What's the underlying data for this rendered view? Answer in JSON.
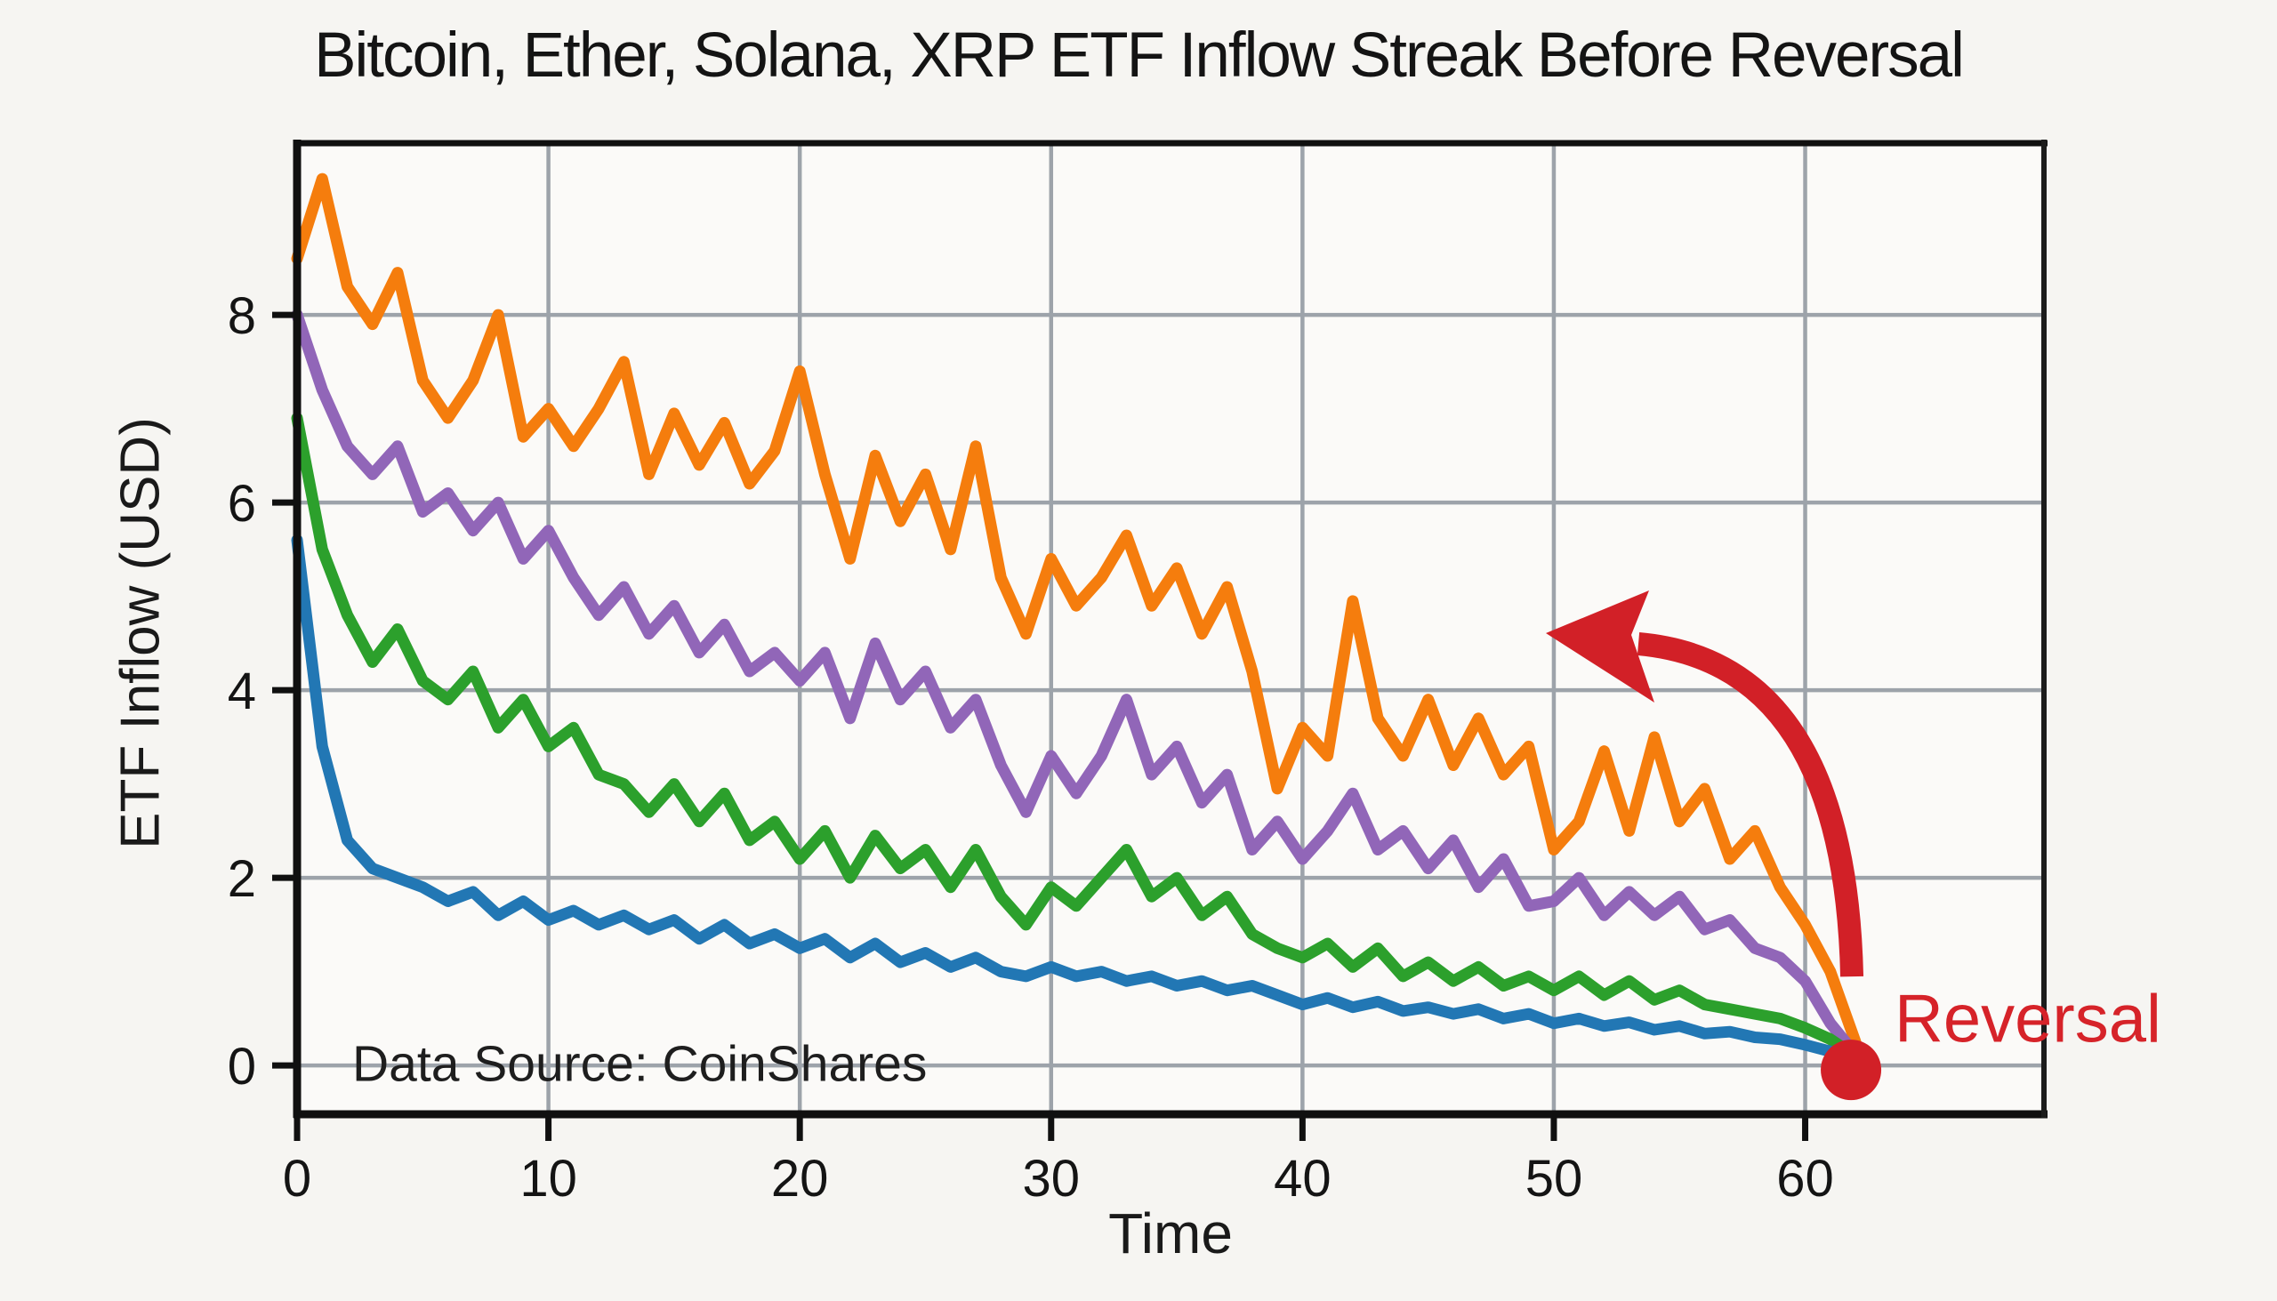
{
  "page": {
    "background": "#f6f5f2",
    "plot_background": "#fbfaf8",
    "grid_color": "#9da3aa",
    "spine_color": "#101010",
    "text_color": "#141414"
  },
  "chart_data": {
    "type": "line",
    "title": "Bitcoin, Ether, Solana, XRP ETF Inflow Streak Before Reversal",
    "xlabel": "Time",
    "ylabel": "ETF Inflow (USD)",
    "source_note": "Data Source: CoinShares",
    "x_ticks": [
      0,
      10,
      20,
      30,
      40,
      50,
      60
    ],
    "y_ticks": [
      0,
      2,
      4,
      6,
      8
    ],
    "xlim": [
      0,
      69.5
    ],
    "ylim": [
      -0.52,
      9.83
    ],
    "grid": true,
    "legend": "none",
    "annotation": {
      "label": "Reversal",
      "color": "#d62329",
      "arrow_color": "#d22027",
      "point": {
        "x": 62,
        "y": 0
      }
    },
    "x": [
      0,
      1,
      2,
      3,
      4,
      5,
      6,
      7,
      8,
      9,
      10,
      11,
      12,
      13,
      14,
      15,
      16,
      17,
      18,
      19,
      20,
      21,
      22,
      23,
      24,
      25,
      26,
      27,
      28,
      29,
      30,
      31,
      32,
      33,
      34,
      35,
      36,
      37,
      38,
      39,
      40,
      41,
      42,
      43,
      44,
      45,
      46,
      47,
      48,
      49,
      50,
      51,
      52,
      53,
      54,
      55,
      56,
      57,
      58,
      59,
      60,
      61,
      62
    ],
    "series": [
      {
        "name": "Bitcoin",
        "color": "#f57d0d",
        "values": [
          8.6,
          9.45,
          8.3,
          7.9,
          8.45,
          7.3,
          6.9,
          7.3,
          8.0,
          6.7,
          7.0,
          6.6,
          7.0,
          7.5,
          6.3,
          6.95,
          6.4,
          6.85,
          6.2,
          6.55,
          7.4,
          6.3,
          5.4,
          6.5,
          5.8,
          6.3,
          5.5,
          6.6,
          5.2,
          4.6,
          5.4,
          4.9,
          5.2,
          5.65,
          4.9,
          5.3,
          4.6,
          5.1,
          4.2,
          2.95,
          3.6,
          3.3,
          4.95,
          3.7,
          3.3,
          3.9,
          3.2,
          3.7,
          3.1,
          3.4,
          2.3,
          2.6,
          3.35,
          2.5,
          3.5,
          2.6,
          2.95,
          2.2,
          2.5,
          1.9,
          1.5,
          1.0,
          0.25
        ]
      },
      {
        "name": "Ether",
        "color": "#9166b8",
        "values": [
          8.0,
          7.2,
          6.6,
          6.3,
          6.6,
          5.9,
          6.1,
          5.7,
          6.0,
          5.4,
          5.7,
          5.2,
          4.8,
          5.1,
          4.6,
          4.9,
          4.4,
          4.7,
          4.2,
          4.4,
          4.1,
          4.4,
          3.7,
          4.5,
          3.9,
          4.2,
          3.6,
          3.9,
          3.2,
          2.7,
          3.3,
          2.9,
          3.3,
          3.9,
          3.1,
          3.4,
          2.8,
          3.1,
          2.3,
          2.6,
          2.2,
          2.5,
          2.9,
          2.3,
          2.5,
          2.1,
          2.4,
          1.9,
          2.2,
          1.7,
          1.75,
          2.0,
          1.6,
          1.85,
          1.6,
          1.8,
          1.45,
          1.55,
          1.25,
          1.15,
          0.9,
          0.45,
          0.12
        ]
      },
      {
        "name": "Solana",
        "color": "#2ca02c",
        "values": [
          6.9,
          5.5,
          4.8,
          4.3,
          4.65,
          4.1,
          3.9,
          4.2,
          3.6,
          3.9,
          3.4,
          3.6,
          3.1,
          3.0,
          2.7,
          3.0,
          2.6,
          2.9,
          2.4,
          2.6,
          2.2,
          2.5,
          2.0,
          2.45,
          2.1,
          2.3,
          1.9,
          2.3,
          1.8,
          1.5,
          1.9,
          1.7,
          2.0,
          2.3,
          1.8,
          2.0,
          1.6,
          1.8,
          1.4,
          1.25,
          1.15,
          1.3,
          1.05,
          1.25,
          0.95,
          1.1,
          0.9,
          1.05,
          0.85,
          0.95,
          0.8,
          0.95,
          0.75,
          0.9,
          0.7,
          0.8,
          0.65,
          0.6,
          0.55,
          0.5,
          0.4,
          0.28,
          0.1
        ]
      },
      {
        "name": "XRP",
        "color": "#2277b4",
        "values": [
          5.6,
          3.4,
          2.4,
          2.1,
          2.0,
          1.9,
          1.75,
          1.85,
          1.6,
          1.75,
          1.55,
          1.65,
          1.5,
          1.6,
          1.45,
          1.55,
          1.35,
          1.5,
          1.3,
          1.4,
          1.25,
          1.35,
          1.15,
          1.3,
          1.1,
          1.2,
          1.05,
          1.15,
          1.0,
          0.95,
          1.05,
          0.95,
          1.0,
          0.9,
          0.95,
          0.85,
          0.9,
          0.8,
          0.85,
          0.75,
          0.65,
          0.72,
          0.62,
          0.68,
          0.58,
          0.62,
          0.55,
          0.6,
          0.5,
          0.55,
          0.45,
          0.5,
          0.42,
          0.46,
          0.38,
          0.42,
          0.34,
          0.36,
          0.3,
          0.28,
          0.22,
          0.15,
          0.06
        ]
      }
    ]
  }
}
